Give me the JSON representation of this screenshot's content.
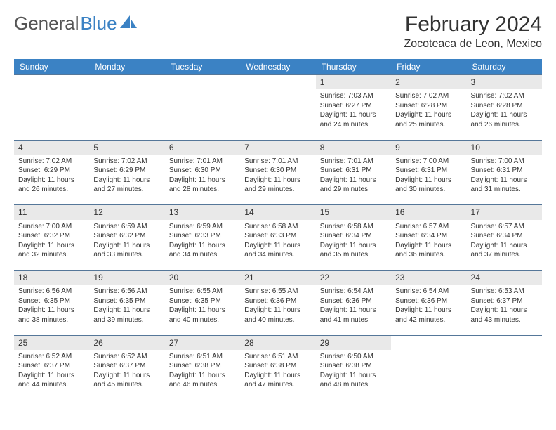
{
  "logo": {
    "part1": "General",
    "part2": "Blue"
  },
  "title": "February 2024",
  "location": "Zocoteaca de Leon, Mexico",
  "colors": {
    "header_bg": "#3b82c4",
    "header_text": "#ffffff",
    "daynum_bg": "#e9e9e9",
    "border": "#557799",
    "text": "#333333"
  },
  "weekdays": [
    "Sunday",
    "Monday",
    "Tuesday",
    "Wednesday",
    "Thursday",
    "Friday",
    "Saturday"
  ],
  "weeks": [
    [
      null,
      null,
      null,
      null,
      {
        "n": "1",
        "sr": "Sunrise: 7:03 AM",
        "ss": "Sunset: 6:27 PM",
        "dl1": "Daylight: 11 hours",
        "dl2": "and 24 minutes."
      },
      {
        "n": "2",
        "sr": "Sunrise: 7:02 AM",
        "ss": "Sunset: 6:28 PM",
        "dl1": "Daylight: 11 hours",
        "dl2": "and 25 minutes."
      },
      {
        "n": "3",
        "sr": "Sunrise: 7:02 AM",
        "ss": "Sunset: 6:28 PM",
        "dl1": "Daylight: 11 hours",
        "dl2": "and 26 minutes."
      }
    ],
    [
      {
        "n": "4",
        "sr": "Sunrise: 7:02 AM",
        "ss": "Sunset: 6:29 PM",
        "dl1": "Daylight: 11 hours",
        "dl2": "and 26 minutes."
      },
      {
        "n": "5",
        "sr": "Sunrise: 7:02 AM",
        "ss": "Sunset: 6:29 PM",
        "dl1": "Daylight: 11 hours",
        "dl2": "and 27 minutes."
      },
      {
        "n": "6",
        "sr": "Sunrise: 7:01 AM",
        "ss": "Sunset: 6:30 PM",
        "dl1": "Daylight: 11 hours",
        "dl2": "and 28 minutes."
      },
      {
        "n": "7",
        "sr": "Sunrise: 7:01 AM",
        "ss": "Sunset: 6:30 PM",
        "dl1": "Daylight: 11 hours",
        "dl2": "and 29 minutes."
      },
      {
        "n": "8",
        "sr": "Sunrise: 7:01 AM",
        "ss": "Sunset: 6:31 PM",
        "dl1": "Daylight: 11 hours",
        "dl2": "and 29 minutes."
      },
      {
        "n": "9",
        "sr": "Sunrise: 7:00 AM",
        "ss": "Sunset: 6:31 PM",
        "dl1": "Daylight: 11 hours",
        "dl2": "and 30 minutes."
      },
      {
        "n": "10",
        "sr": "Sunrise: 7:00 AM",
        "ss": "Sunset: 6:31 PM",
        "dl1": "Daylight: 11 hours",
        "dl2": "and 31 minutes."
      }
    ],
    [
      {
        "n": "11",
        "sr": "Sunrise: 7:00 AM",
        "ss": "Sunset: 6:32 PM",
        "dl1": "Daylight: 11 hours",
        "dl2": "and 32 minutes."
      },
      {
        "n": "12",
        "sr": "Sunrise: 6:59 AM",
        "ss": "Sunset: 6:32 PM",
        "dl1": "Daylight: 11 hours",
        "dl2": "and 33 minutes."
      },
      {
        "n": "13",
        "sr": "Sunrise: 6:59 AM",
        "ss": "Sunset: 6:33 PM",
        "dl1": "Daylight: 11 hours",
        "dl2": "and 34 minutes."
      },
      {
        "n": "14",
        "sr": "Sunrise: 6:58 AM",
        "ss": "Sunset: 6:33 PM",
        "dl1": "Daylight: 11 hours",
        "dl2": "and 34 minutes."
      },
      {
        "n": "15",
        "sr": "Sunrise: 6:58 AM",
        "ss": "Sunset: 6:34 PM",
        "dl1": "Daylight: 11 hours",
        "dl2": "and 35 minutes."
      },
      {
        "n": "16",
        "sr": "Sunrise: 6:57 AM",
        "ss": "Sunset: 6:34 PM",
        "dl1": "Daylight: 11 hours",
        "dl2": "and 36 minutes."
      },
      {
        "n": "17",
        "sr": "Sunrise: 6:57 AM",
        "ss": "Sunset: 6:34 PM",
        "dl1": "Daylight: 11 hours",
        "dl2": "and 37 minutes."
      }
    ],
    [
      {
        "n": "18",
        "sr": "Sunrise: 6:56 AM",
        "ss": "Sunset: 6:35 PM",
        "dl1": "Daylight: 11 hours",
        "dl2": "and 38 minutes."
      },
      {
        "n": "19",
        "sr": "Sunrise: 6:56 AM",
        "ss": "Sunset: 6:35 PM",
        "dl1": "Daylight: 11 hours",
        "dl2": "and 39 minutes."
      },
      {
        "n": "20",
        "sr": "Sunrise: 6:55 AM",
        "ss": "Sunset: 6:35 PM",
        "dl1": "Daylight: 11 hours",
        "dl2": "and 40 minutes."
      },
      {
        "n": "21",
        "sr": "Sunrise: 6:55 AM",
        "ss": "Sunset: 6:36 PM",
        "dl1": "Daylight: 11 hours",
        "dl2": "and 40 minutes."
      },
      {
        "n": "22",
        "sr": "Sunrise: 6:54 AM",
        "ss": "Sunset: 6:36 PM",
        "dl1": "Daylight: 11 hours",
        "dl2": "and 41 minutes."
      },
      {
        "n": "23",
        "sr": "Sunrise: 6:54 AM",
        "ss": "Sunset: 6:36 PM",
        "dl1": "Daylight: 11 hours",
        "dl2": "and 42 minutes."
      },
      {
        "n": "24",
        "sr": "Sunrise: 6:53 AM",
        "ss": "Sunset: 6:37 PM",
        "dl1": "Daylight: 11 hours",
        "dl2": "and 43 minutes."
      }
    ],
    [
      {
        "n": "25",
        "sr": "Sunrise: 6:52 AM",
        "ss": "Sunset: 6:37 PM",
        "dl1": "Daylight: 11 hours",
        "dl2": "and 44 minutes."
      },
      {
        "n": "26",
        "sr": "Sunrise: 6:52 AM",
        "ss": "Sunset: 6:37 PM",
        "dl1": "Daylight: 11 hours",
        "dl2": "and 45 minutes."
      },
      {
        "n": "27",
        "sr": "Sunrise: 6:51 AM",
        "ss": "Sunset: 6:38 PM",
        "dl1": "Daylight: 11 hours",
        "dl2": "and 46 minutes."
      },
      {
        "n": "28",
        "sr": "Sunrise: 6:51 AM",
        "ss": "Sunset: 6:38 PM",
        "dl1": "Daylight: 11 hours",
        "dl2": "and 47 minutes."
      },
      {
        "n": "29",
        "sr": "Sunrise: 6:50 AM",
        "ss": "Sunset: 6:38 PM",
        "dl1": "Daylight: 11 hours",
        "dl2": "and 48 minutes."
      },
      null,
      null
    ]
  ]
}
